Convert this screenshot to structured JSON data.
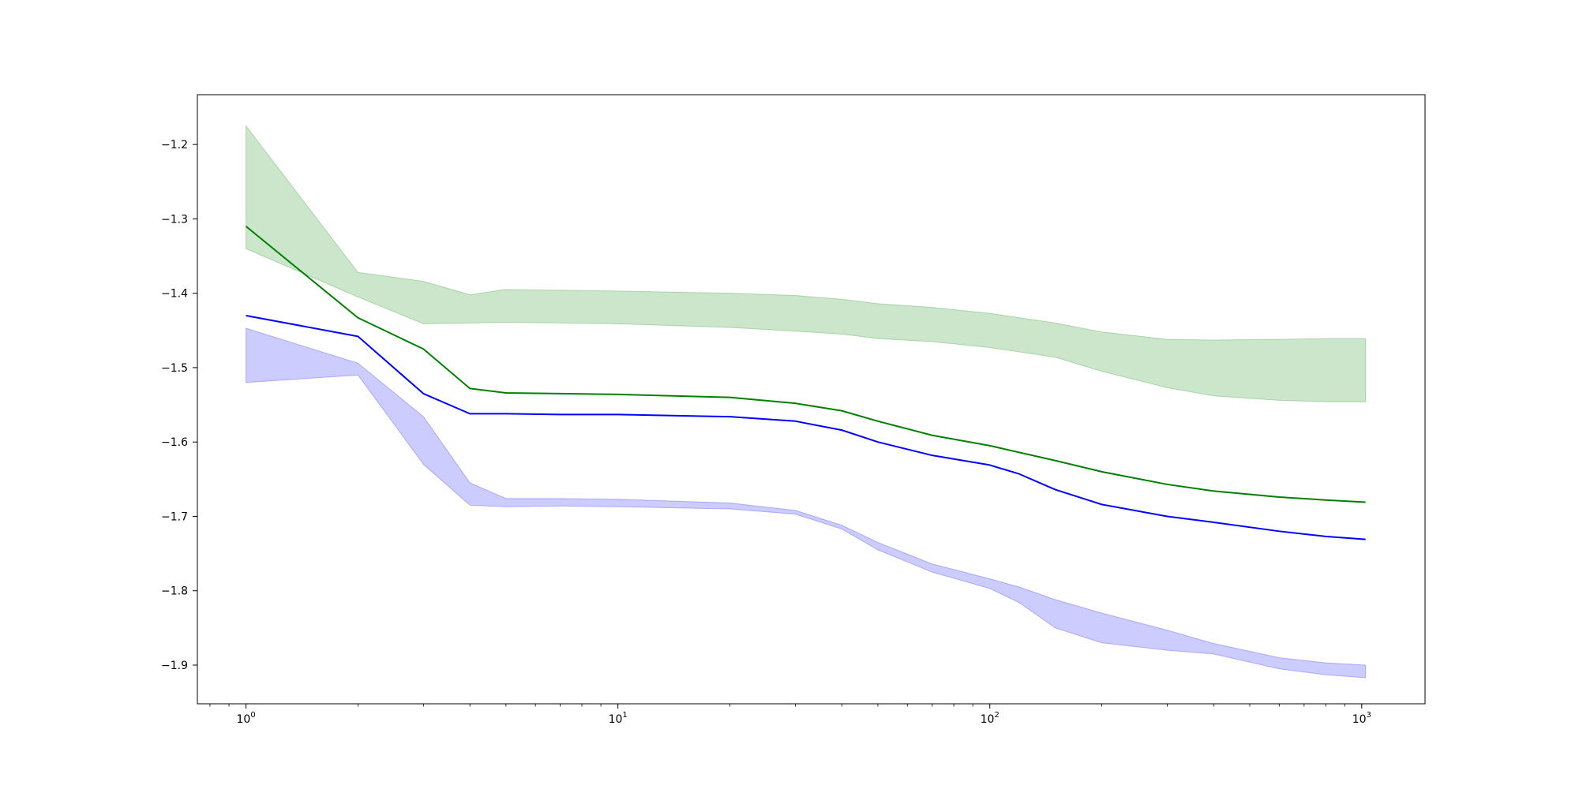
{
  "chart_data": {
    "type": "area",
    "x_scale": "log",
    "xlim": [
      0.74,
      1480
    ],
    "ylim": [
      -1.952,
      -1.133
    ],
    "grid": false,
    "legend": null,
    "x_ticks": [
      {
        "value": 1,
        "base": "10",
        "exp": "0"
      },
      {
        "value": 10,
        "base": "10",
        "exp": "1"
      },
      {
        "value": 100,
        "base": "10",
        "exp": "2"
      },
      {
        "value": 1000,
        "base": "10",
        "exp": "3"
      }
    ],
    "y_ticks": [
      {
        "value": -1.9,
        "label": "−1.9"
      },
      {
        "value": -1.8,
        "label": "−1.8"
      },
      {
        "value": -1.7,
        "label": "−1.7"
      },
      {
        "value": -1.6,
        "label": "−1.6"
      },
      {
        "value": -1.5,
        "label": "−1.5"
      },
      {
        "value": -1.4,
        "label": "−1.4"
      },
      {
        "value": -1.3,
        "label": "−1.3"
      },
      {
        "value": -1.2,
        "label": "−1.2"
      }
    ],
    "series": [
      {
        "color": "#008000",
        "fill_color": "#008000",
        "fill_opacity": 0.2,
        "x": [
          1,
          2,
          3,
          4,
          5,
          7,
          10,
          20,
          30,
          40,
          50,
          70,
          100,
          150,
          200,
          300,
          400,
          600,
          800,
          1024
        ],
        "mean": [
          -1.31,
          -1.433,
          -1.475,
          -1.528,
          -1.534,
          -1.535,
          -1.536,
          -1.54,
          -1.548,
          -1.558,
          -1.572,
          -1.591,
          -1.605,
          -1.625,
          -1.64,
          -1.657,
          -1.666,
          -1.674,
          -1.678,
          -1.681
        ],
        "upper": [
          -1.175,
          -1.372,
          -1.384,
          -1.402,
          -1.395,
          -1.396,
          -1.397,
          -1.4,
          -1.403,
          -1.408,
          -1.414,
          -1.419,
          -1.427,
          -1.44,
          -1.452,
          -1.462,
          -1.463,
          -1.462,
          -1.461,
          -1.461
        ],
        "lower": [
          -1.34,
          -1.405,
          -1.441,
          -1.44,
          -1.439,
          -1.44,
          -1.441,
          -1.446,
          -1.451,
          -1.455,
          -1.461,
          -1.465,
          -1.473,
          -1.486,
          -1.505,
          -1.527,
          -1.538,
          -1.544,
          -1.546,
          -1.546
        ]
      },
      {
        "color": "#0000ff",
        "fill_color": "#0000ff",
        "fill_opacity": 0.2,
        "x": [
          1,
          2,
          3,
          4,
          5,
          7,
          10,
          20,
          30,
          40,
          50,
          70,
          100,
          120,
          150,
          200,
          300,
          400,
          600,
          800,
          1024
        ],
        "mean": [
          -1.43,
          -1.458,
          -1.535,
          -1.562,
          -1.562,
          -1.563,
          -1.563,
          -1.566,
          -1.572,
          -1.584,
          -1.6,
          -1.618,
          -1.631,
          -1.643,
          -1.664,
          -1.684,
          -1.7,
          -1.708,
          -1.72,
          -1.727,
          -1.731
        ],
        "upper": [
          -1.447,
          -1.494,
          -1.566,
          -1.655,
          -1.676,
          -1.676,
          -1.677,
          -1.682,
          -1.692,
          -1.712,
          -1.735,
          -1.764,
          -1.784,
          -1.795,
          -1.812,
          -1.83,
          -1.853,
          -1.871,
          -1.89,
          -1.897,
          -1.9
        ],
        "lower": [
          -1.52,
          -1.51,
          -1.63,
          -1.685,
          -1.687,
          -1.686,
          -1.687,
          -1.69,
          -1.697,
          -1.717,
          -1.745,
          -1.775,
          -1.797,
          -1.816,
          -1.85,
          -1.87,
          -1.88,
          -1.885,
          -1.905,
          -1.913,
          -1.917
        ]
      }
    ]
  }
}
